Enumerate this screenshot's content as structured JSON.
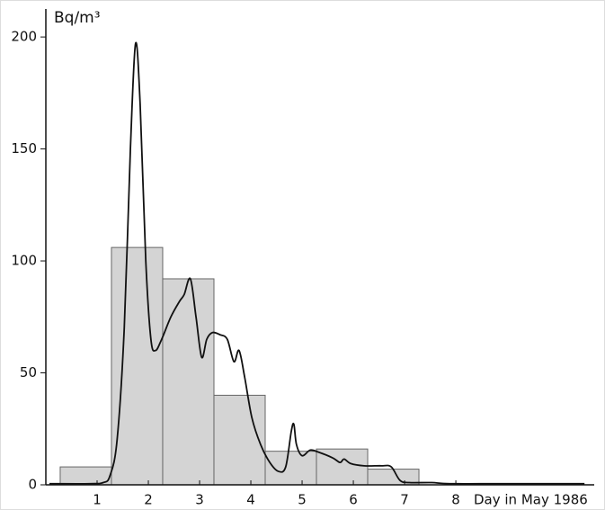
{
  "chart_data": {
    "type": "histogram",
    "y_label": "Bq/m³",
    "x_label": "Day in May 1986",
    "bins": [
      0.28,
      1.28,
      2.28,
      3.28,
      4.28,
      5.28,
      6.28,
      7.28
    ],
    "values": [
      8,
      106,
      92,
      40,
      15,
      16,
      7
    ],
    "color": "#d4d4d4",
    "line": {
      "color": "#111111",
      "x": [
        0.07,
        0.86,
        1.12,
        1.25,
        1.39,
        1.53,
        1.65,
        1.75,
        1.84,
        1.95,
        2.05,
        2.14,
        2.26,
        2.44,
        2.61,
        2.7,
        2.82,
        2.93,
        3.04,
        3.14,
        3.25,
        3.4,
        3.54,
        3.67,
        3.77,
        3.88,
        4.02,
        4.19,
        4.37,
        4.54,
        4.68,
        4.79,
        4.84,
        4.89,
        5.0,
        5.16,
        5.33,
        5.6,
        5.74,
        5.82,
        5.95,
        6.21,
        6.56,
        6.74,
        6.91,
        7.09,
        7.53,
        7.88,
        8.93,
        10.51
      ],
      "values": [
        0.5,
        0.5,
        1,
        4,
        20,
        70,
        150,
        197,
        170,
        100,
        65,
        60,
        65,
        75,
        82,
        85,
        92,
        75,
        57,
        65,
        68,
        67,
        65,
        55,
        60,
        48,
        30,
        18,
        10,
        6,
        8,
        24,
        27,
        18,
        13,
        15.5,
        14.5,
        12,
        10,
        11.5,
        9.5,
        8.5,
        8.5,
        8,
        2,
        1,
        1,
        0.5,
        0.5,
        0.5
      ]
    },
    "xlim": [
      0,
      10.7
    ],
    "ylim": [
      0,
      212.5
    ],
    "xticks": [
      1,
      2,
      3,
      4,
      5,
      6,
      7,
      8
    ],
    "yticks": [
      0,
      50,
      100,
      150,
      200
    ]
  }
}
